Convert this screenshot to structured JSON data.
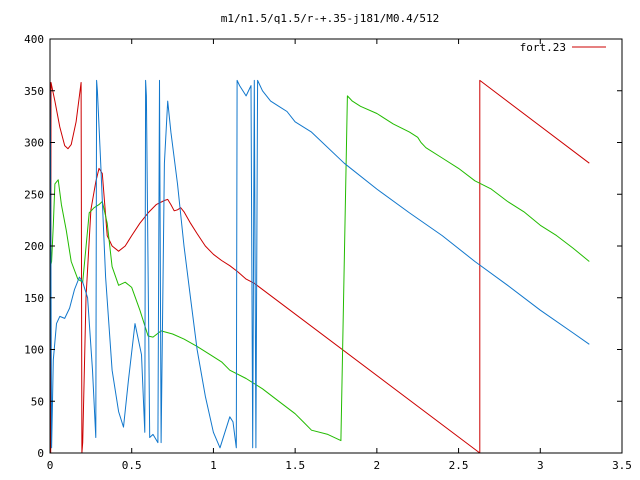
{
  "chart_data": {
    "type": "line",
    "title": "m1/n1.5/q1.5/r-+.35-j181/M0.4/512",
    "xlabel": "",
    "ylabel": "",
    "xlim": [
      0,
      3.5
    ],
    "ylim": [
      0,
      400
    ],
    "xticks": [
      0,
      0.5,
      1,
      1.5,
      2,
      2.5,
      3,
      3.5
    ],
    "yticks": [
      0,
      50,
      100,
      150,
      200,
      250,
      300,
      350,
      400
    ],
    "xtick_labels": [
      "0",
      "0.5",
      "1",
      "1.5",
      "2",
      "2.5",
      "3",
      "3.5"
    ],
    "ytick_labels": [
      "0",
      "50",
      "100",
      "150",
      "200",
      "250",
      "300",
      "350",
      "400"
    ],
    "grid": false,
    "legend_position": "top-right",
    "series": [
      {
        "name": "fort.23",
        "color": "#cc0000",
        "points": [
          [
            0,
            0
          ],
          [
            0.002,
            355
          ],
          [
            0.004,
            0
          ],
          [
            0.006,
            358
          ],
          [
            0.03,
            340
          ],
          [
            0.06,
            315
          ],
          [
            0.09,
            297
          ],
          [
            0.11,
            294
          ],
          [
            0.13,
            298
          ],
          [
            0.16,
            320
          ],
          [
            0.18,
            345
          ],
          [
            0.19,
            358
          ],
          [
            0.195,
            0
          ],
          [
            0.2,
            10
          ],
          [
            0.22,
            150
          ],
          [
            0.25,
            235
          ],
          [
            0.28,
            262
          ],
          [
            0.3,
            275
          ],
          [
            0.32,
            270
          ],
          [
            0.35,
            210
          ],
          [
            0.38,
            200
          ],
          [
            0.42,
            195
          ],
          [
            0.46,
            200
          ],
          [
            0.5,
            210
          ],
          [
            0.55,
            222
          ],
          [
            0.6,
            232
          ],
          [
            0.65,
            240
          ],
          [
            0.7,
            244
          ],
          [
            0.72,
            245
          ],
          [
            0.74,
            240
          ],
          [
            0.76,
            234
          ],
          [
            0.78,
            235
          ],
          [
            0.8,
            237
          ],
          [
            0.82,
            233
          ],
          [
            0.86,
            222
          ],
          [
            0.9,
            212
          ],
          [
            0.95,
            200
          ],
          [
            1.0,
            192
          ],
          [
            1.05,
            186
          ],
          [
            1.1,
            181
          ],
          [
            1.15,
            175
          ],
          [
            1.2,
            168
          ],
          [
            1.25,
            164
          ],
          [
            2.63,
            0
          ],
          [
            2.63,
            360
          ],
          [
            3.3,
            280
          ]
        ]
      },
      {
        "name": "",
        "color": "#22bb00",
        "points": [
          [
            0,
            178
          ],
          [
            0.01,
            185
          ],
          [
            0.02,
            220
          ],
          [
            0.03,
            260
          ],
          [
            0.05,
            264
          ],
          [
            0.07,
            240
          ],
          [
            0.1,
            215
          ],
          [
            0.13,
            185
          ],
          [
            0.17,
            168
          ],
          [
            0.2,
            165
          ],
          [
            0.24,
            232
          ],
          [
            0.27,
            237
          ],
          [
            0.3,
            240
          ],
          [
            0.32,
            243
          ],
          [
            0.35,
            222
          ],
          [
            0.38,
            180
          ],
          [
            0.42,
            162
          ],
          [
            0.46,
            165
          ],
          [
            0.5,
            160
          ],
          [
            0.55,
            138
          ],
          [
            0.6,
            113
          ],
          [
            0.63,
            112
          ],
          [
            0.68,
            118
          ],
          [
            0.75,
            115
          ],
          [
            0.82,
            110
          ],
          [
            0.9,
            103
          ],
          [
            0.98,
            95
          ],
          [
            1.05,
            88
          ],
          [
            1.1,
            80
          ],
          [
            1.2,
            72
          ],
          [
            1.3,
            62
          ],
          [
            1.4,
            50
          ],
          [
            1.5,
            38
          ],
          [
            1.55,
            30
          ],
          [
            1.6,
            22
          ],
          [
            1.7,
            18
          ],
          [
            1.78,
            12
          ],
          [
            1.82,
            345
          ],
          [
            1.85,
            340
          ],
          [
            1.9,
            335
          ],
          [
            2.0,
            328
          ],
          [
            2.1,
            318
          ],
          [
            2.2,
            310
          ],
          [
            2.25,
            305
          ],
          [
            2.27,
            300
          ],
          [
            2.3,
            295
          ],
          [
            2.4,
            285
          ],
          [
            2.5,
            275
          ],
          [
            2.6,
            263
          ],
          [
            2.7,
            255
          ],
          [
            2.8,
            243
          ],
          [
            2.9,
            233
          ],
          [
            3.0,
            220
          ],
          [
            3.1,
            210
          ],
          [
            3.2,
            198
          ],
          [
            3.3,
            185
          ]
        ]
      },
      {
        "name": "",
        "color": "#1177cc",
        "points": [
          [
            0,
            0
          ],
          [
            0.002,
            350
          ],
          [
            0.01,
            5
          ],
          [
            0.02,
            90
          ],
          [
            0.04,
            125
          ],
          [
            0.06,
            132
          ],
          [
            0.09,
            130
          ],
          [
            0.12,
            140
          ],
          [
            0.15,
            158
          ],
          [
            0.18,
            170
          ],
          [
            0.2,
            165
          ],
          [
            0.23,
            150
          ],
          [
            0.26,
            80
          ],
          [
            0.28,
            15
          ],
          [
            0.285,
            360
          ],
          [
            0.29,
            350
          ],
          [
            0.31,
            280
          ],
          [
            0.34,
            170
          ],
          [
            0.38,
            80
          ],
          [
            0.42,
            40
          ],
          [
            0.45,
            25
          ],
          [
            0.48,
            70
          ],
          [
            0.52,
            125
          ],
          [
            0.56,
            95
          ],
          [
            0.58,
            20
          ],
          [
            0.585,
            360
          ],
          [
            0.59,
            345
          ],
          [
            0.61,
            15
          ],
          [
            0.63,
            18
          ],
          [
            0.66,
            10
          ],
          [
            0.67,
            360
          ],
          [
            0.68,
            10
          ],
          [
            0.7,
            280
          ],
          [
            0.72,
            340
          ],
          [
            0.74,
            310
          ],
          [
            0.78,
            260
          ],
          [
            0.82,
            200
          ],
          [
            0.86,
            150
          ],
          [
            0.9,
            100
          ],
          [
            0.95,
            55
          ],
          [
            1.0,
            20
          ],
          [
            1.04,
            5
          ],
          [
            1.07,
            20
          ],
          [
            1.1,
            35
          ],
          [
            1.12,
            30
          ],
          [
            1.14,
            5
          ],
          [
            1.145,
            360
          ],
          [
            1.16,
            355
          ],
          [
            1.2,
            345
          ],
          [
            1.23,
            355
          ],
          [
            1.24,
            5
          ],
          [
            1.25,
            360
          ],
          [
            1.26,
            5
          ],
          [
            1.27,
            360
          ],
          [
            1.3,
            350
          ],
          [
            1.35,
            340
          ],
          [
            1.4,
            335
          ],
          [
            1.45,
            330
          ],
          [
            1.5,
            320
          ],
          [
            1.6,
            310
          ],
          [
            1.8,
            280
          ],
          [
            2.0,
            255
          ],
          [
            2.2,
            232
          ],
          [
            2.4,
            210
          ],
          [
            2.6,
            185
          ],
          [
            2.8,
            162
          ],
          [
            3.0,
            138
          ],
          [
            3.2,
            116
          ],
          [
            3.3,
            105
          ]
        ]
      }
    ]
  }
}
